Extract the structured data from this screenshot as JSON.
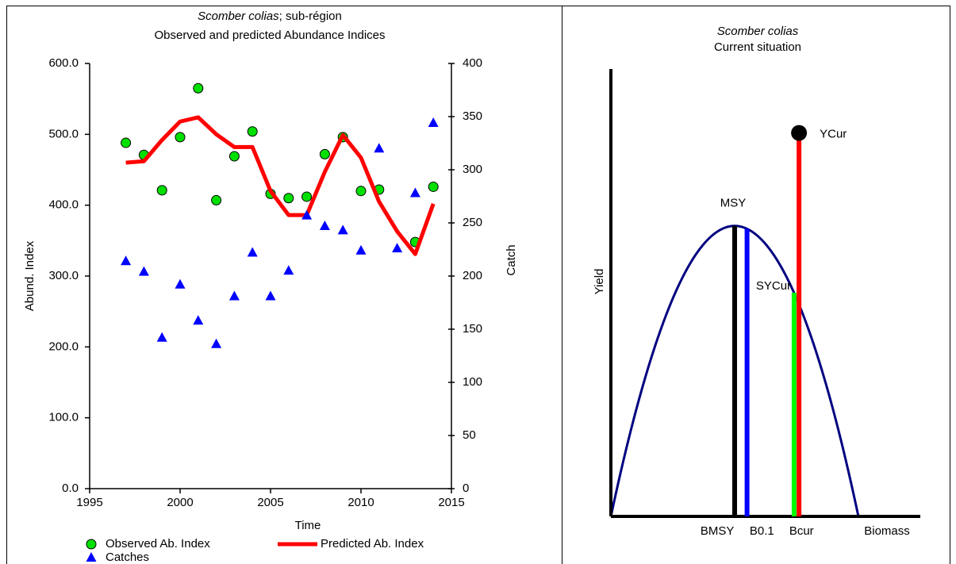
{
  "chart_data": [
    {
      "type": "combo",
      "title_italic": "Scomber colias",
      "title_rest": "; sub-région",
      "subtitle": "Observed and predicted Abundance Indices",
      "x_label": "Time",
      "y_label": "Abund. Index",
      "y2_label": "Catch",
      "x": [
        1997,
        1998,
        1999,
        2000,
        2001,
        2002,
        2003,
        2004,
        2005,
        2006,
        2007,
        2008,
        2009,
        2010,
        2011,
        2012,
        2013,
        2014
      ],
      "xlim": [
        1995,
        2015
      ],
      "xticks": [
        1995,
        2000,
        2005,
        2010,
        2015
      ],
      "ylim": [
        0,
        600
      ],
      "yticks": [
        {
          "value": 0,
          "label": "0.0"
        },
        {
          "value": 100,
          "label": "100.0"
        },
        {
          "value": 200,
          "label": "200.0"
        },
        {
          "value": 300,
          "label": "300.0"
        },
        {
          "value": 400,
          "label": "400.0"
        },
        {
          "value": 500,
          "label": "500.0"
        },
        {
          "value": 600,
          "label": "600.0"
        }
      ],
      "y2lim": [
        0,
        400
      ],
      "y2ticks": [
        0,
        50,
        100,
        150,
        200,
        250,
        300,
        350,
        400
      ],
      "series": [
        {
          "name": "Observed Ab. Index",
          "color": "#00e000",
          "marker": "circle",
          "values": [
            488,
            471,
            421,
            496,
            565,
            407,
            469,
            504,
            416,
            410,
            412,
            472,
            496,
            420,
            422,
            null,
            348,
            426
          ]
        },
        {
          "name": "Predicted Ab. Index",
          "color": "#ff0000",
          "marker": "line",
          "values": [
            460,
            462,
            492,
            518,
            524,
            500,
            482,
            482,
            420,
            386,
            386,
            447,
            499,
            467,
            405,
            363,
            331,
            402
          ]
        },
        {
          "name": "Catches",
          "color": "#0000ff",
          "marker": "triangle",
          "axis": "y2",
          "values": [
            214,
            204,
            142,
            192,
            158,
            136,
            181,
            222,
            181,
            205,
            257,
            247,
            243,
            224,
            320,
            226,
            278,
            344
          ]
        }
      ]
    },
    {
      "type": "production",
      "title_italic": "Scomber colias",
      "subtitle": "Current situation",
      "x_label": "Biomass",
      "y_label": "Yield",
      "xlim": [
        0,
        125
      ],
      "ylim": [
        0,
        154
      ],
      "curve": {
        "K": 100,
        "MSY": 100,
        "color": "#000080"
      },
      "lines": [
        {
          "x": 50,
          "y": 100,
          "color": "#000000",
          "label": "MSY"
        },
        {
          "x": 55,
          "y": 99,
          "color": "#0000ff"
        },
        {
          "x": 74,
          "y": 77,
          "color": "#00ff00",
          "label": "SYCur"
        },
        {
          "x": 76,
          "y": 132,
          "color": "#ff0000",
          "label": "YCur"
        }
      ],
      "x_markers": [
        {
          "label": "BMSY",
          "value": 43
        },
        {
          "label": "B0.1",
          "value": 61
        },
        {
          "label": "Bcur",
          "value": 77
        }
      ]
    }
  ]
}
